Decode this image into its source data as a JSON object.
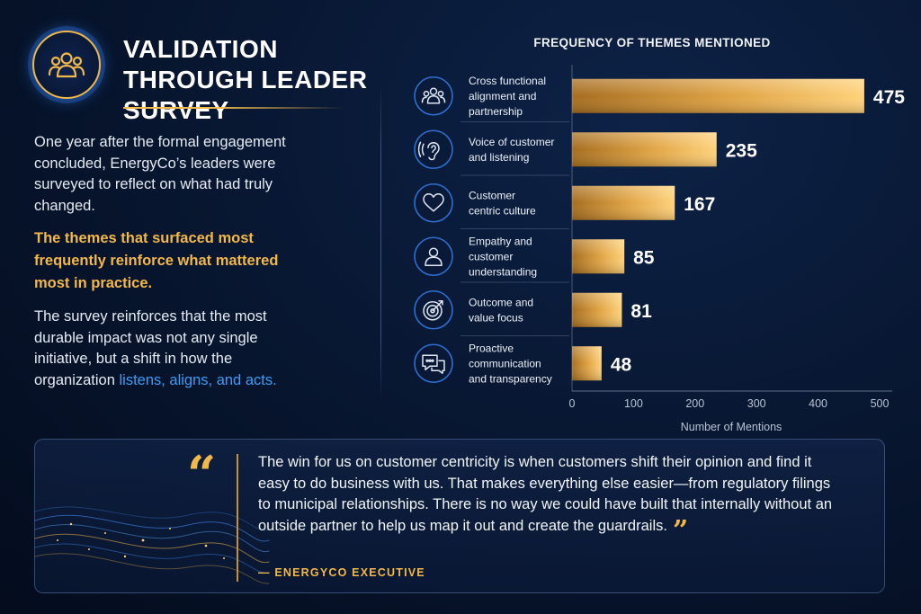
{
  "header": {
    "title": "VALIDATION THROUGH LEADER SURVEY",
    "badge_icon": "people-group-icon"
  },
  "left_panel": {
    "intro": "One year after the formal engagement concluded, EnergyCo’s leaders were surveyed to reflect on what had truly changed.",
    "highlight": "The themes that surfaced most frequently reinforce what mattered most in practice.",
    "closing_prefix": "The survey reinforces that the most durable impact was not any single initiative, but a shift in how the organization ",
    "closing_emphasis": "listens, aligns, and acts."
  },
  "chart_data": {
    "type": "bar",
    "orientation": "horizontal",
    "title": "FREQUENCY OF THEMES MENTIONED",
    "xlabel": "Number of Mentions",
    "ylabel": "",
    "xlim": [
      0,
      500
    ],
    "xticks": [
      0,
      100,
      200,
      300,
      400,
      500
    ],
    "categories": [
      "Cross functional alignment and partnership",
      "Voice of customer and listening",
      "Customer centric culture",
      "Empathy and customer understanding",
      "Outcome and value focus",
      "Proactive communication and transparency"
    ],
    "category_lines": [
      [
        "Cross functional",
        "alignment and",
        "partnership"
      ],
      [
        "Voice of customer",
        "and listening"
      ],
      [
        "Customer",
        "centric culture"
      ],
      [
        "Empathy and",
        "customer",
        "understanding"
      ],
      [
        "Outcome and",
        "value focus"
      ],
      [
        "Proactive",
        "communication",
        "and transparency"
      ]
    ],
    "icons": [
      "people-group-icon",
      "ear-icon",
      "heart-icon",
      "person-icon",
      "target-icon",
      "chat-bubbles-icon"
    ],
    "values": [
      475,
      235,
      167,
      85,
      81,
      48
    ],
    "grid": false,
    "bar_color": "#f2b84a"
  },
  "quote": {
    "text": "The win for us on customer centricity is when customers shift their opinion and find it easy to do business with us. That makes everything else easier—from regulatory filings to municipal relationships. There is no way we could have built that internally without an outside partner to help us map it out and create the guardrails.",
    "attribution": "— ENERGYCO EXECUTIVE",
    "open_mark": "“",
    "close_mark": "”"
  },
  "colors": {
    "accent_gold": "#f2b84a",
    "accent_blue": "#3d9cf5",
    "background": "#07152e"
  }
}
